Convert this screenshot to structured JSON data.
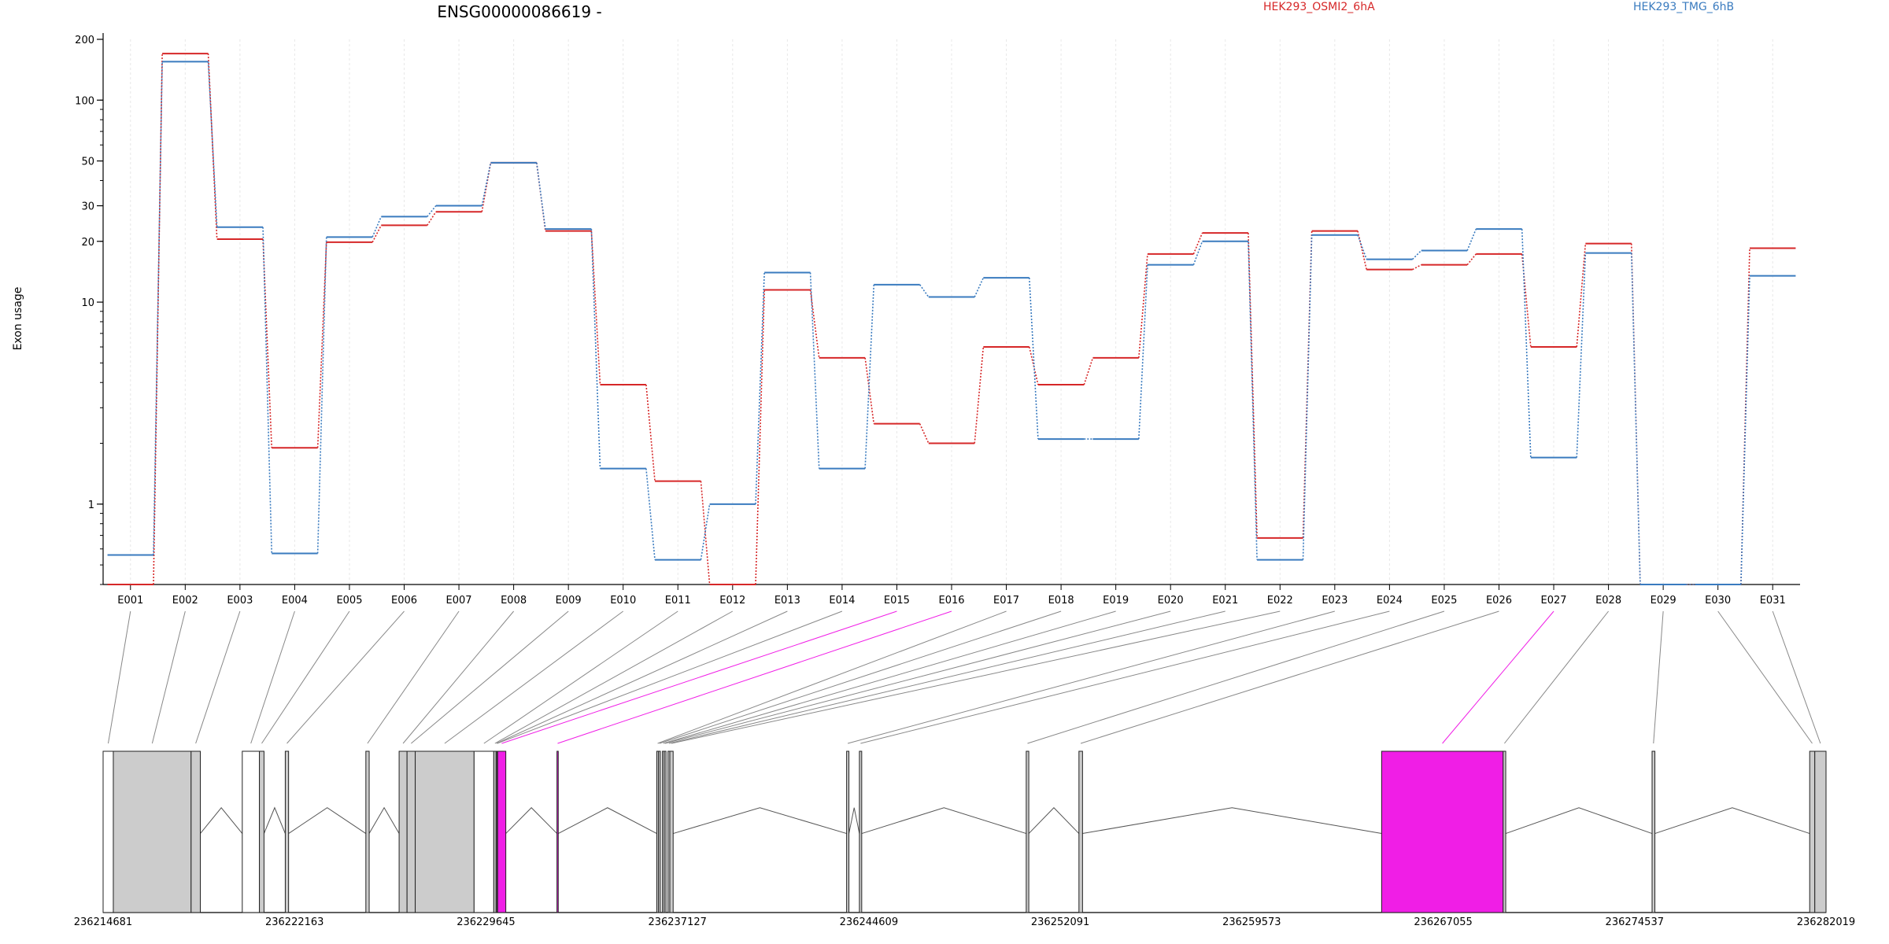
{
  "chart_data": {
    "type": "line",
    "title": "ENSG00000086619 -",
    "ylabel": "Exon usage",
    "yscale": "log",
    "ylim": [
      0.4,
      200
    ],
    "yticks": [
      1,
      10,
      20,
      30,
      50,
      100,
      200
    ],
    "categories": [
      "E001",
      "E002",
      "E003",
      "E004",
      "E005",
      "E006",
      "E007",
      "E008",
      "E009",
      "E010",
      "E011",
      "E012",
      "E013",
      "E014",
      "E015",
      "E016",
      "E017",
      "E018",
      "E019",
      "E020",
      "E021",
      "E022",
      "E023",
      "E024",
      "E025",
      "E026",
      "E027",
      "E028",
      "E029",
      "E030",
      "E031"
    ],
    "series": [
      {
        "name": "HEK293_OSMI2_6hA",
        "color": "#d62728",
        "values": [
          0.4,
          170,
          20.5,
          1.9,
          19.8,
          24,
          28,
          49,
          22.5,
          3.9,
          1.3,
          0.4,
          11.5,
          5.3,
          2.5,
          2.0,
          6.0,
          3.9,
          5.3,
          17.3,
          22,
          0.68,
          22.5,
          14.5,
          15.3,
          17.3,
          6.0,
          19.5,
          0.4,
          0.4,
          18.5
        ]
      },
      {
        "name": "HEK293_TMG_6hB",
        "color": "#3a7bbf",
        "values": [
          0.56,
          155,
          23.5,
          0.57,
          21,
          26.5,
          30,
          49,
          23,
          1.5,
          0.53,
          1.0,
          14,
          1.5,
          12.2,
          10.6,
          13.2,
          2.1,
          2.1,
          15.3,
          20,
          0.53,
          21.5,
          16.3,
          18,
          23,
          1.7,
          17.5,
          0.4,
          0.4,
          13.5
        ]
      }
    ],
    "gene_model": {
      "coord_range": [
        236214681,
        236282019
      ],
      "coord_labels": [
        "236214681",
        "236222163",
        "236229645",
        "236237127",
        "236244609",
        "236252091",
        "236259573",
        "236267055",
        "236274537",
        "236282019"
      ],
      "highlight_exons": [
        "E015",
        "E016",
        "E027"
      ],
      "highlight_color": "#f01ee6",
      "exons": [
        {
          "id": "E001",
          "start": 236214681,
          "end": 236215080,
          "fill": "#ffffff"
        },
        {
          "id": "E002",
          "start": 236215080,
          "end": 236218120,
          "fill": "#cccccc"
        },
        {
          "id": "E003",
          "start": 236218120,
          "end": 236218480,
          "fill": "#cccccc"
        },
        {
          "id": "E004",
          "start": 236220120,
          "end": 236220790,
          "fill": "#ffffff"
        },
        {
          "id": "E005",
          "start": 236220790,
          "end": 236220970,
          "fill": "#cccccc"
        },
        {
          "id": "E006",
          "start": 236221800,
          "end": 236221930,
          "fill": "#cccccc"
        },
        {
          "id": "E007",
          "start": 236224950,
          "end": 236225080,
          "fill": "#cccccc"
        },
        {
          "id": "E008",
          "start": 236226250,
          "end": 236226560,
          "fill": "#cccccc"
        },
        {
          "id": "E009",
          "start": 236226560,
          "end": 236226880,
          "fill": "#cccccc"
        },
        {
          "id": "E010",
          "start": 236226880,
          "end": 236229180,
          "fill": "#cccccc"
        },
        {
          "id": "E011",
          "start": 236229180,
          "end": 236229950,
          "fill": "#ffffff"
        },
        {
          "id": "E012",
          "start": 236229950,
          "end": 236230040,
          "fill": "#cccccc"
        },
        {
          "id": "E013",
          "start": 236230040,
          "end": 236230070,
          "fill": "#cccccc"
        },
        {
          "id": "E014",
          "start": 236230070,
          "end": 236230100,
          "fill": "#cccccc"
        },
        {
          "id": "E015",
          "start": 236230100,
          "end": 236230420,
          "fill": "#f01ee6"
        },
        {
          "id": "E016",
          "start": 236232420,
          "end": 236232470,
          "fill": "#f01ee6"
        },
        {
          "id": "E017",
          "start": 236236320,
          "end": 236236390,
          "fill": "#cccccc"
        },
        {
          "id": "E018",
          "start": 236236390,
          "end": 236236460,
          "fill": "#cccccc"
        },
        {
          "id": "E019",
          "start": 236236540,
          "end": 236236610,
          "fill": "#cccccc"
        },
        {
          "id": "E020",
          "start": 236236610,
          "end": 236236680,
          "fill": "#cccccc"
        },
        {
          "id": "E021",
          "start": 236236760,
          "end": 236236830,
          "fill": "#cccccc"
        },
        {
          "id": "E022",
          "start": 236236830,
          "end": 236236960,
          "fill": "#cccccc"
        },
        {
          "id": "E023",
          "start": 236243740,
          "end": 236243830,
          "fill": "#cccccc"
        },
        {
          "id": "E024",
          "start": 236244240,
          "end": 236244330,
          "fill": "#cccccc"
        },
        {
          "id": "E025",
          "start": 236250760,
          "end": 236250860,
          "fill": "#cccccc"
        },
        {
          "id": "E026",
          "start": 236252820,
          "end": 236252960,
          "fill": "#cccccc"
        },
        {
          "id": "E027",
          "start": 236264650,
          "end": 236269400,
          "fill": "#f01ee6"
        },
        {
          "id": "E028",
          "start": 236269400,
          "end": 236269500,
          "fill": "#cccccc"
        },
        {
          "id": "E029",
          "start": 236275220,
          "end": 236275330,
          "fill": "#cccccc"
        },
        {
          "id": "E030",
          "start": 236281380,
          "end": 236281580,
          "fill": "#cccccc"
        },
        {
          "id": "E031",
          "start": 236281580,
          "end": 236282019,
          "fill": "#cccccc"
        }
      ]
    }
  }
}
